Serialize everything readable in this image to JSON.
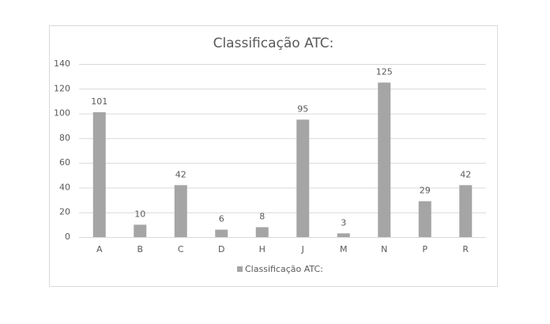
{
  "chart_data": {
    "type": "bar",
    "title": "Classificação ATC:",
    "categories": [
      "A",
      "B",
      "C",
      "D",
      "H",
      "J",
      "M",
      "N",
      "P",
      "R"
    ],
    "series": [
      {
        "name": "Classificação ATC:",
        "color": "#a5a5a5",
        "values": [
          101,
          10,
          42,
          6,
          8,
          95,
          3,
          125,
          29,
          42
        ]
      }
    ],
    "ylim": [
      0,
      140
    ],
    "yticks": [
      0,
      20,
      40,
      60,
      80,
      100,
      120,
      140
    ],
    "grid": true,
    "legend": "bottom"
  }
}
